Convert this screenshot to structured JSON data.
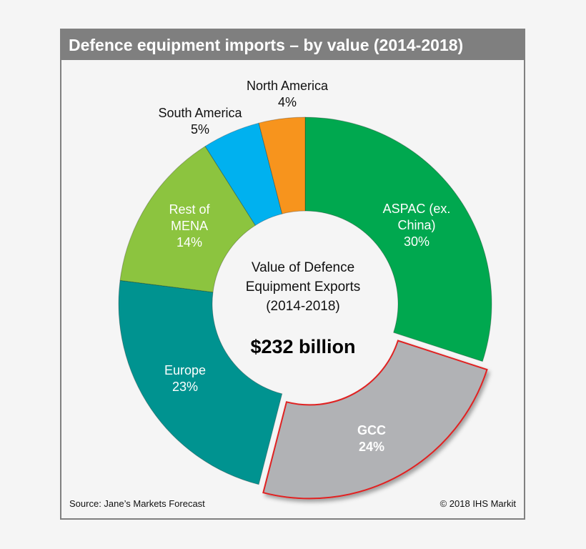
{
  "chart_data": {
    "type": "pie",
    "variant": "donut",
    "title": "Defence equipment imports – by value (2014-2018)",
    "categories": [
      "ASPAC (ex. China)",
      "GCC",
      "Europe",
      "Rest of MENA",
      "South America",
      "North America"
    ],
    "values": [
      30,
      24,
      23,
      14,
      5,
      4
    ],
    "unit": "%",
    "colors": [
      "#00a84f",
      "#b1b2b5",
      "#009390",
      "#8cc43f",
      "#00b1ef",
      "#f7941d"
    ],
    "exploded": "GCC",
    "highlight_color": "#e02020",
    "data_labels": [
      [
        "ASPAC (ex.",
        "China)",
        "30%"
      ],
      [
        "GCC",
        "24%"
      ],
      [
        "Europe",
        "23%"
      ],
      [
        "Rest of",
        "MENA",
        "14%"
      ],
      [
        "South America",
        "5%"
      ],
      [
        "North America",
        "4%"
      ]
    ],
    "center_text": [
      "Value of Defence",
      "Equipment Exports",
      "(2014-2018)"
    ],
    "total": "$232 billion",
    "legend": "none"
  },
  "footer": {
    "source": "Source: Jane’s Markets Forecast",
    "copyright": "© 2018 IHS Markit"
  }
}
